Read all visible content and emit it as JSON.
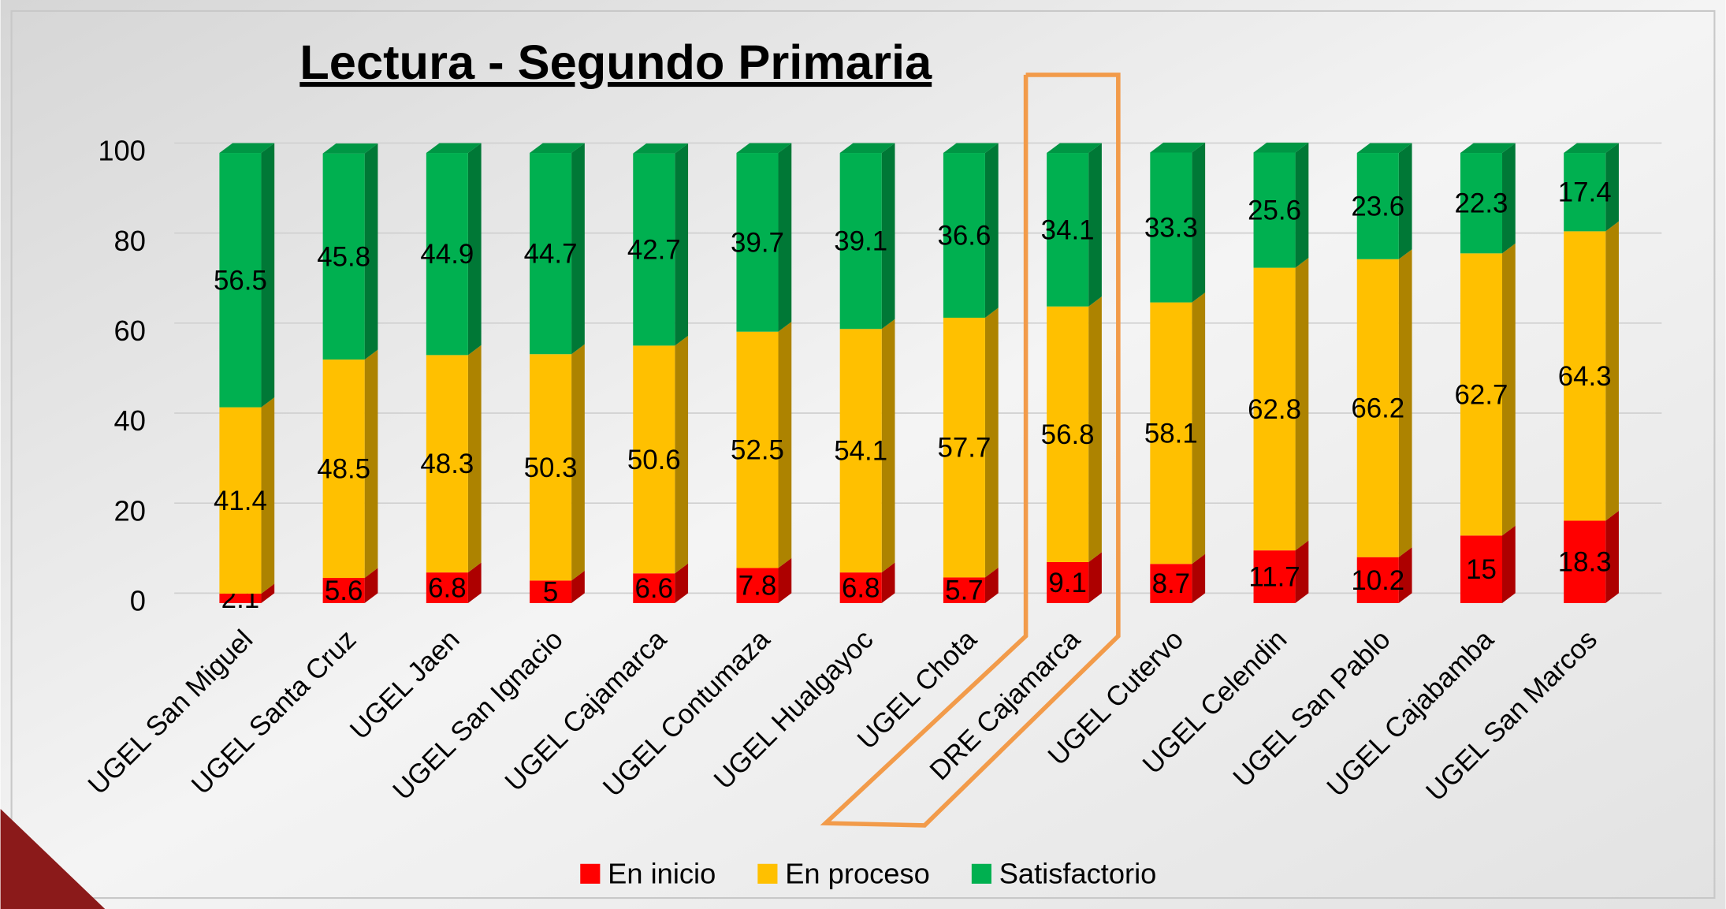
{
  "chart_data": {
    "type": "stacked_bar_3d",
    "title": "Lectura - Segundo Primaria",
    "categories": [
      "UGEL San Miguel",
      "UGEL Santa Cruz",
      "UGEL Jaen",
      "UGEL San Ignacio",
      "UGEL Cajamarca",
      "UGEL Contumaza",
      "UGEL Hualgayoc",
      "UGEL Chota",
      "DRE Cajamarca",
      "UGEL Cutervo",
      "UGEL Celendin",
      "UGEL San Pablo",
      "UGEL Cajabamba",
      "UGEL San Marcos"
    ],
    "series": [
      {
        "name": "En inicio",
        "color": "#ff0000",
        "values": [
          2.1,
          5.6,
          6.8,
          5,
          6.6,
          7.8,
          6.8,
          5.7,
          9.1,
          8.7,
          11.7,
          10.2,
          15,
          18.3
        ]
      },
      {
        "name": "En proceso",
        "color": "#ffc000",
        "values": [
          41.4,
          48.5,
          48.3,
          50.3,
          50.6,
          52.5,
          54.1,
          57.7,
          56.8,
          58.1,
          62.8,
          66.2,
          62.7,
          64.3
        ]
      },
      {
        "name": "Satisfactorio",
        "color": "#00b050",
        "values": [
          56.5,
          45.8,
          44.9,
          44.7,
          42.7,
          39.7,
          39.1,
          36.6,
          34.1,
          33.3,
          25.6,
          23.6,
          22.3,
          17.4
        ]
      }
    ],
    "ylim": [
      0,
      100
    ],
    "yticks": [
      0,
      20,
      40,
      60,
      80,
      100
    ],
    "grid": true,
    "legend": "bottom"
  }
}
